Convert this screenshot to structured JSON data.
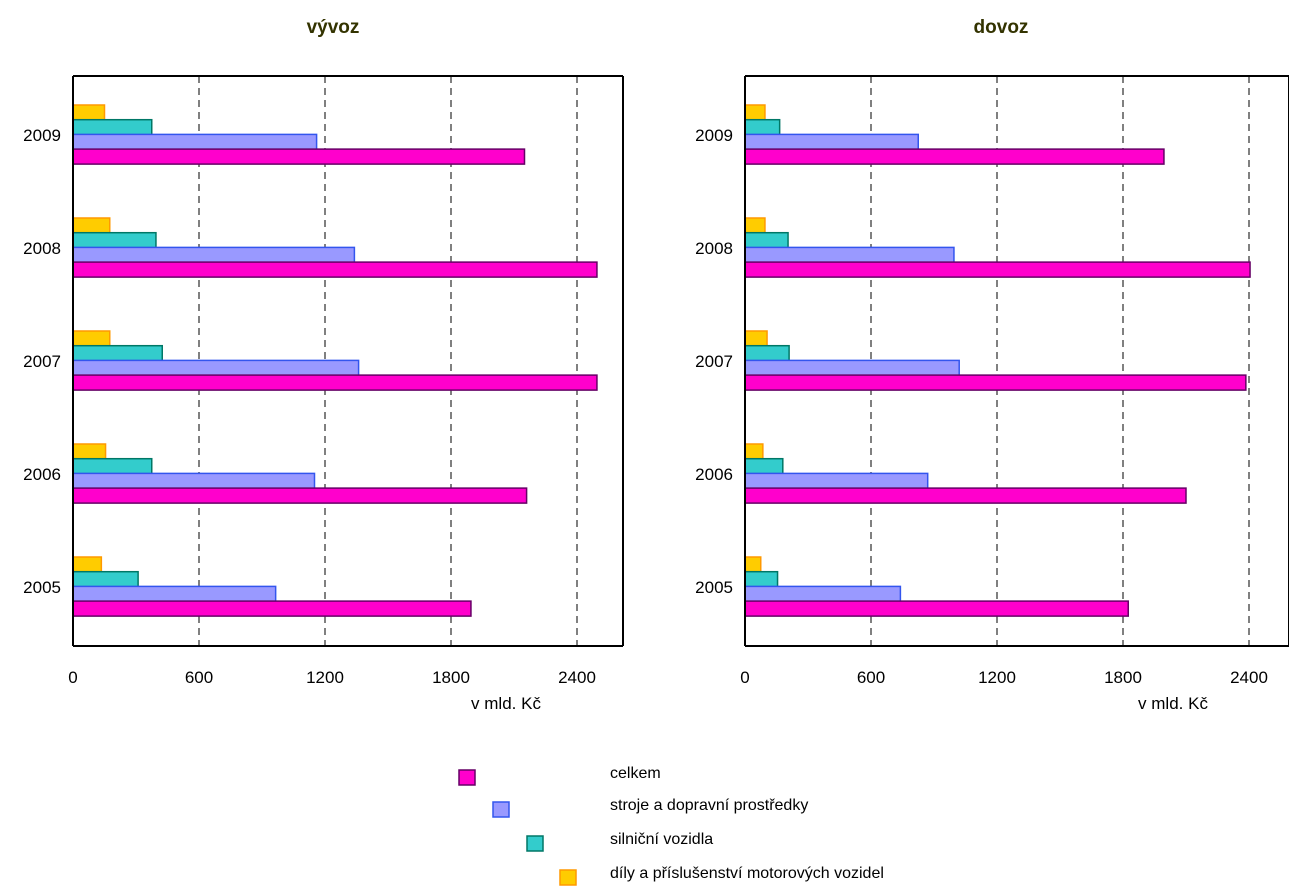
{
  "chart_data": [
    {
      "type": "bar",
      "orientation": "horizontal",
      "title": "vývoz",
      "xlabel": "v mld. Kč",
      "categories": [
        "2009",
        "2008",
        "2007",
        "2006",
        "2005"
      ],
      "xlim": [
        0,
        2600
      ],
      "xticks": [
        "0",
        "600",
        "1200",
        "1800",
        "2400"
      ],
      "grid": "vertical dashed",
      "series": [
        {
          "name": "díly a příslušenství motorových vozidel",
          "color": "#ffcc00",
          "values": [
            150,
            175,
            175,
            155,
            135
          ]
        },
        {
          "name": "silniční vozidla",
          "color": "#33cccc",
          "values": [
            375,
            395,
            425,
            375,
            310
          ]
        },
        {
          "name": "stroje a dopravní prostředky",
          "color": "#9999ff",
          "values": [
            1160,
            1340,
            1360,
            1150,
            965
          ]
        },
        {
          "name": "celkem",
          "color": "#ff00cc",
          "values": [
            2150,
            2495,
            2495,
            2160,
            1895
          ]
        }
      ]
    },
    {
      "type": "bar",
      "orientation": "horizontal",
      "title": "dovoz",
      "xlabel": "v mld. Kč",
      "categories": [
        "2009",
        "2008",
        "2007",
        "2006",
        "2005"
      ],
      "xlim": [
        0,
        2600
      ],
      "xticks": [
        "0",
        "600",
        "1200",
        "1800",
        "2400"
      ],
      "grid": "vertical dashed",
      "series": [
        {
          "name": "díly a příslušenství motorových vozidel",
          "color": "#ffcc00",
          "values": [
            95,
            95,
            105,
            85,
            75
          ]
        },
        {
          "name": "silniční vozidla",
          "color": "#33cccc",
          "values": [
            165,
            205,
            210,
            180,
            155
          ]
        },
        {
          "name": "stroje a dopravní prostředky",
          "color": "#9999ff",
          "values": [
            825,
            995,
            1020,
            870,
            740
          ]
        },
        {
          "name": "celkem",
          "color": "#ff00cc",
          "values": [
            1995,
            2405,
            2385,
            2100,
            1825
          ]
        }
      ]
    }
  ],
  "legend": [
    {
      "label": "celkem",
      "color": "#ff00cc"
    },
    {
      "label": "stroje a dopravní prostředky",
      "color": "#9999ff"
    },
    {
      "label": "silniční vozidla",
      "color": "#33cccc"
    },
    {
      "label": "díly a příslušenství motorových vozidel",
      "color": "#ffcc00"
    }
  ]
}
